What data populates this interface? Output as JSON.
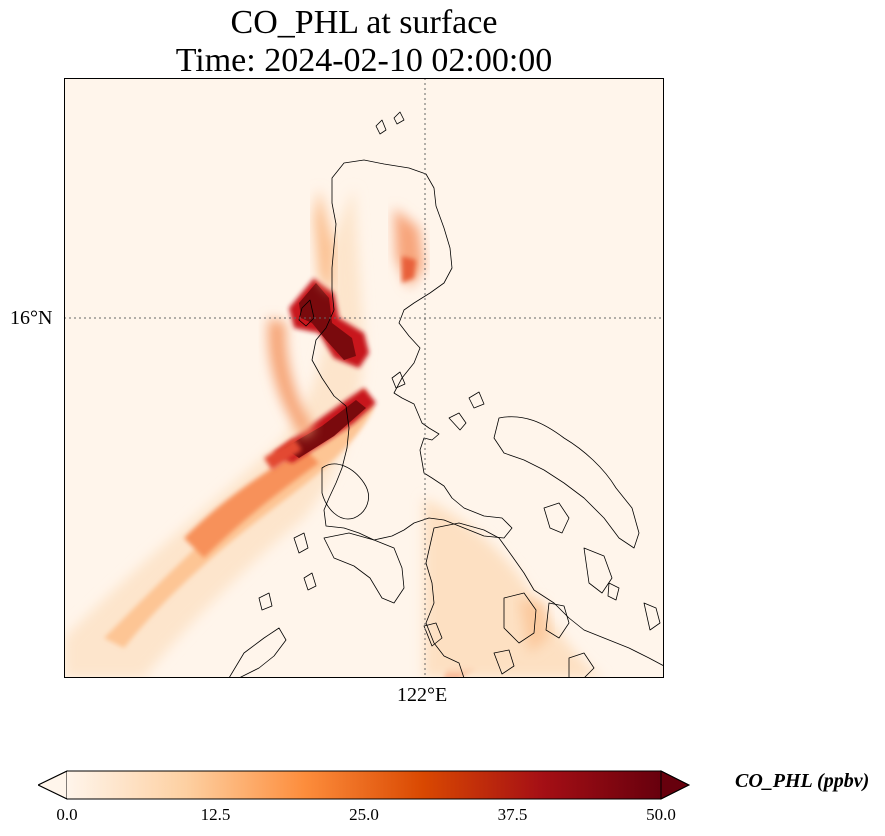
{
  "title": {
    "line1": "CO_PHL at surface",
    "line2": "Time: 2024-02-10 02:00:00"
  },
  "axes": {
    "lat_tick": "16°N",
    "lon_tick": "122°E"
  },
  "colorbar": {
    "label": "CO_PHL (ppbv)",
    "ticks": [
      "0.0",
      "12.5",
      "25.0",
      "37.5",
      "50.0"
    ],
    "min": 0,
    "max": 50,
    "colormap": [
      "#fff5eb",
      "#fdd0a2",
      "#fd8d3c",
      "#d94801",
      "#a50f15",
      "#67000d"
    ]
  },
  "colors": {
    "background": "#fff5eb",
    "coastline": "#000000",
    "gridline": "#666666"
  }
}
